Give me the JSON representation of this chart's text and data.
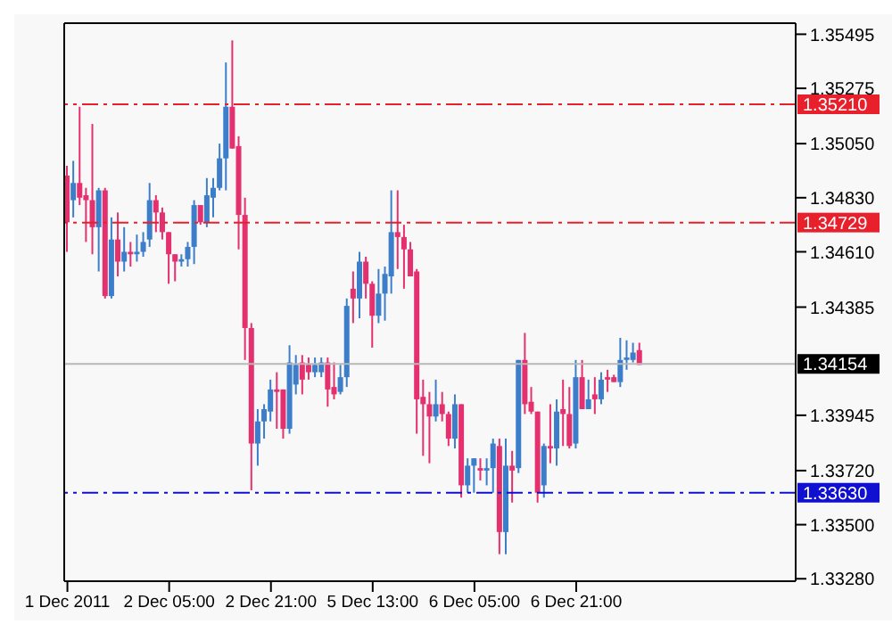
{
  "chart_data": {
    "type": "candlestick",
    "categories": [
      "1 Dec 2011",
      null,
      null,
      null,
      null,
      null,
      null,
      null,
      null,
      null,
      null,
      null,
      null,
      null,
      null,
      null,
      "2 Dec 05:00",
      null,
      null,
      null,
      null,
      null,
      null,
      null,
      null,
      null,
      null,
      null,
      null,
      null,
      null,
      null,
      "2 Dec 21:00",
      null,
      null,
      null,
      null,
      null,
      null,
      null,
      null,
      null,
      null,
      null,
      null,
      null,
      null,
      null,
      "5 Dec 13:00",
      null,
      null,
      null,
      null,
      null,
      null,
      null,
      null,
      null,
      null,
      null,
      null,
      null,
      null,
      null,
      "6 Dec 05:00",
      null,
      null,
      null,
      null,
      null,
      null,
      null,
      null,
      null,
      null,
      null,
      null,
      null,
      null,
      null,
      "6 Dec 21:00",
      null,
      null,
      null,
      null,
      null,
      null,
      null,
      null,
      null,
      null,
      null,
      null,
      null,
      null,
      null,
      null,
      null,
      null,
      null,
      null,
      null,
      null,
      null,
      null,
      null,
      null,
      null,
      null,
      null,
      null,
      null,
      null,
      null,
      null
    ],
    "ohlc": [
      [
        1.3492,
        1.3496,
        1.3461,
        1.3473
      ],
      [
        1.3482,
        1.3498,
        1.3475,
        1.3489
      ],
      [
        1.3489,
        1.352,
        1.348,
        1.3483
      ],
      [
        1.3484,
        1.3487,
        1.3465,
        1.3482
      ],
      [
        1.3482,
        1.3513,
        1.346,
        1.3471
      ],
      [
        1.3471,
        1.3487,
        1.3453,
        1.3486
      ],
      [
        1.3486,
        1.3487,
        1.3442,
        1.3443
      ],
      [
        1.3443,
        1.3475,
        1.3442,
        1.3466
      ],
      [
        1.3466,
        1.3477,
        1.3451,
        1.3457
      ],
      [
        1.3457,
        1.3471,
        1.3453,
        1.3461
      ],
      [
        1.3461,
        1.3465,
        1.3455,
        1.346
      ],
      [
        1.346,
        1.3468,
        1.3457,
        1.3461
      ],
      [
        1.3461,
        1.3469,
        1.3459,
        1.3465
      ],
      [
        1.3466,
        1.3489,
        1.3463,
        1.3482
      ],
      [
        1.3482,
        1.3484,
        1.3469,
        1.3477
      ],
      [
        1.3477,
        1.3479,
        1.3466,
        1.3469
      ],
      [
        1.3469,
        1.3469,
        1.3448,
        1.346
      ],
      [
        1.346,
        1.346,
        1.3449,
        1.3457
      ],
      [
        1.3457,
        1.346,
        1.3455,
        1.3458
      ],
      [
        1.3458,
        1.3465,
        1.3455,
        1.3463
      ],
      [
        1.3463,
        1.3482,
        1.3456,
        1.348
      ],
      [
        1.348,
        1.348,
        1.3472,
        1.3473
      ],
      [
        1.3473,
        1.3491,
        1.3471,
        1.3484
      ],
      [
        1.3483,
        1.3491,
        1.3475,
        1.3487
      ],
      [
        1.3487,
        1.3505,
        1.3486,
        1.3499
      ],
      [
        1.3499,
        1.3538,
        1.3486,
        1.352
      ],
      [
        1.352,
        1.3547,
        1.3503,
        1.3503
      ],
      [
        1.3504,
        1.3508,
        1.3462,
        1.3476
      ],
      [
        1.3476,
        1.3483,
        1.3417,
        1.343
      ],
      [
        1.343,
        1.3432,
        1.3364,
        1.3383
      ],
      [
        1.3383,
        1.3397,
        1.3374,
        1.3392
      ],
      [
        1.3392,
        1.3399,
        1.3385,
        1.3397
      ],
      [
        1.3396,
        1.3409,
        1.3392,
        1.3405
      ],
      [
        1.3405,
        1.3412,
        1.3389,
        1.3404
      ],
      [
        1.3405,
        1.3405,
        1.3385,
        1.3389
      ],
      [
        1.3389,
        1.3423,
        1.3387,
        1.3416
      ],
      [
        1.3407,
        1.3419,
        1.3403,
        1.3415
      ],
      [
        1.3416,
        1.3419,
        1.3403,
        1.3409
      ],
      [
        1.3415,
        1.3418,
        1.3409,
        1.3412
      ],
      [
        1.3412,
        1.3418,
        1.341,
        1.3415
      ],
      [
        1.3412,
        1.3418,
        1.341,
        1.3416
      ],
      [
        1.3416,
        1.3418,
        1.3398,
        1.3405
      ],
      [
        1.3406,
        1.3416,
        1.3401,
        1.3403
      ],
      [
        1.3404,
        1.3415,
        1.3403,
        1.341
      ],
      [
        1.341,
        1.3442,
        1.3406,
        1.3439
      ],
      [
        1.3446,
        1.3453,
        1.3432,
        1.3442
      ],
      [
        1.3442,
        1.3461,
        1.3434,
        1.3457
      ],
      [
        1.3457,
        1.3459,
        1.3442,
        1.3448
      ],
      [
        1.3448,
        1.3449,
        1.3422,
        1.3435
      ],
      [
        1.3435,
        1.3454,
        1.3432,
        1.3444
      ],
      [
        1.3444,
        1.3455,
        1.3433,
        1.3452
      ],
      [
        1.3451,
        1.3486,
        1.3444,
        1.3469
      ],
      [
        1.3469,
        1.3486,
        1.3454,
        1.3467
      ],
      [
        1.3467,
        1.3472,
        1.3446,
        1.3462
      ],
      [
        1.3462,
        1.3465,
        1.3451,
        1.3451
      ],
      [
        1.3453,
        1.3454,
        1.3387,
        1.3401
      ],
      [
        1.3402,
        1.3409,
        1.3378,
        1.3399
      ],
      [
        1.3399,
        1.3404,
        1.3375,
        1.3394
      ],
      [
        1.3394,
        1.3409,
        1.3392,
        1.3399
      ],
      [
        1.3399,
        1.3404,
        1.3392,
        1.3395
      ],
      [
        1.3395,
        1.3396,
        1.3382,
        1.3385
      ],
      [
        1.3385,
        1.3403,
        1.3381,
        1.3399
      ],
      [
        1.3399,
        1.3399,
        1.3361,
        1.3366
      ],
      [
        1.3366,
        1.3377,
        1.3363,
        1.3374
      ],
      [
        1.3374,
        1.3377,
        1.3363,
        1.3377
      ],
      [
        1.3373,
        1.3377,
        1.3368,
        1.3372
      ],
      [
        1.3372,
        1.3377,
        1.3366,
        1.3373
      ],
      [
        1.3373,
        1.3385,
        1.3363,
        1.3383
      ],
      [
        1.3382,
        1.3385,
        1.3338,
        1.3347
      ],
      [
        1.3347,
        1.3385,
        1.3338,
        1.3374
      ],
      [
        1.3374,
        1.338,
        1.3359,
        1.3372
      ],
      [
        1.3373,
        1.3417,
        1.3371,
        1.3417
      ],
      [
        1.3417,
        1.3428,
        1.3395,
        1.3399
      ],
      [
        1.34,
        1.3406,
        1.3395,
        1.3396
      ],
      [
        1.3396,
        1.3396,
        1.3359,
        1.3363
      ],
      [
        1.3366,
        1.3383,
        1.3361,
        1.3382
      ],
      [
        1.3382,
        1.3399,
        1.3375,
        1.3381
      ],
      [
        1.3381,
        1.3401,
        1.3374,
        1.3396
      ],
      [
        1.3397,
        1.3409,
        1.3382,
        1.3395
      ],
      [
        1.3395,
        1.3406,
        1.3381,
        1.3382
      ],
      [
        1.3383,
        1.3417,
        1.3381,
        1.341
      ],
      [
        1.341,
        1.3417,
        1.3397,
        1.3397
      ],
      [
        1.3397,
        1.3409,
        1.3397,
        1.3401
      ],
      [
        1.3403,
        1.341,
        1.3395,
        1.3401
      ],
      [
        1.3401,
        1.3412,
        1.3399,
        1.3409
      ],
      [
        1.341,
        1.3413,
        1.3404,
        1.3409
      ],
      [
        1.341,
        1.3411,
        1.3408,
        1.3408
      ],
      [
        1.3408,
        1.3426,
        1.3406,
        1.3417
      ],
      [
        1.3417,
        1.3425,
        1.3413,
        1.3418
      ],
      [
        1.3417,
        1.3424,
        1.3416,
        1.342
      ],
      [
        1.3421,
        1.3424,
        1.3415,
        1.3415
      ],
      null,
      null,
      null,
      null,
      null,
      null,
      null,
      null,
      null,
      null,
      null,
      null,
      null,
      null,
      null,
      null,
      null,
      null,
      null,
      null,
      null,
      null,
      null,
      null
    ],
    "colors": [
      "#e5306f",
      "#3d7ecb",
      "#e5306f",
      "#e5306f",
      "#e5306f",
      "#3d7ecb",
      "#e5306f",
      "#3d7ecb",
      "#e5306f",
      "#3d7ecb",
      "#e5306f",
      "#3d7ecb",
      "#3d7ecb",
      "#3d7ecb",
      "#e5306f",
      "#e5306f",
      "#e5306f",
      "#e5306f",
      "#3d7ecb",
      "#3d7ecb",
      "#3d7ecb",
      "#e5306f",
      "#3d7ecb",
      "#3d7ecb",
      "#3d7ecb",
      "#3d7ecb",
      "#e5306f",
      "#e5306f",
      "#e5306f",
      "#e5306f",
      "#3d7ecb",
      "#3d7ecb",
      "#3d7ecb",
      "#e5306f",
      "#e5306f",
      "#3d7ecb",
      "#3d7ecb",
      "#e5306f",
      "#e5306f",
      "#3d7ecb",
      "#3d7ecb",
      "#e5306f",
      "#e5306f",
      "#3d7ecb",
      "#3d7ecb",
      "#e5306f",
      "#3d7ecb",
      "#e5306f",
      "#e5306f",
      "#3d7ecb",
      "#3d7ecb",
      "#3d7ecb",
      "#e5306f",
      "#e5306f",
      "#e5306f",
      "#e5306f",
      "#e5306f",
      "#e5306f",
      "#3d7ecb",
      "#e5306f",
      "#e5306f",
      "#3d7ecb",
      "#e5306f",
      "#3d7ecb",
      "#3d7ecb",
      "#e5306f",
      "#3d7ecb",
      "#3d7ecb",
      "#e5306f",
      "#3d7ecb",
      "#e5306f",
      "#3d7ecb",
      "#e5306f",
      "#e5306f",
      "#e5306f",
      "#3d7ecb",
      "#e5306f",
      "#3d7ecb",
      "#e5306f",
      "#e5306f",
      "#3d7ecb",
      "#e5306f",
      "#3d7ecb",
      "#e5306f",
      "#3d7ecb",
      "#e5306f",
      "#e5306f",
      "#3d7ecb",
      "#3d7ecb",
      "#3d7ecb",
      "#e5306f",
      null,
      null,
      null,
      null,
      null,
      null,
      null,
      null,
      null,
      null,
      null,
      null,
      null,
      null,
      null,
      null,
      null,
      null,
      null,
      null,
      null,
      null,
      null,
      null
    ],
    "ylim": [
      1.3327,
      1.3554
    ],
    "yticks": [
      1.35495,
      1.35275,
      {
        "value": 1.3505,
        "label": "1.35050"
      },
      {
        "value": 1.3483,
        "label": "1.34830"
      },
      {
        "value": 1.3461,
        "label": "1.34610"
      },
      1.34385,
      1.33945,
      {
        "value": 1.3372,
        "label": "1.33720"
      },
      {
        "value": 1.335,
        "label": "1.33500"
      },
      {
        "value": 1.3328,
        "label": "1.33280"
      }
    ],
    "ref_lines": [
      {
        "axis": "y",
        "value": 1.3521,
        "label": "1.35210",
        "color": "#e8202c",
        "line_style": "dashed"
      },
      {
        "axis": "y",
        "value": 1.34729,
        "label": "1.34729",
        "color": "#e8202c",
        "line_style": "dashed"
      },
      {
        "axis": "y",
        "value": 1.34154,
        "label": "1.34154",
        "color": "#b8b8b8",
        "line_style": "solid"
      },
      {
        "axis": "y",
        "value": 1.3363,
        "label": "1.33630",
        "color": "#1010d0",
        "line_style": "dashed"
      }
    ],
    "grid": false,
    "legend": false
  }
}
